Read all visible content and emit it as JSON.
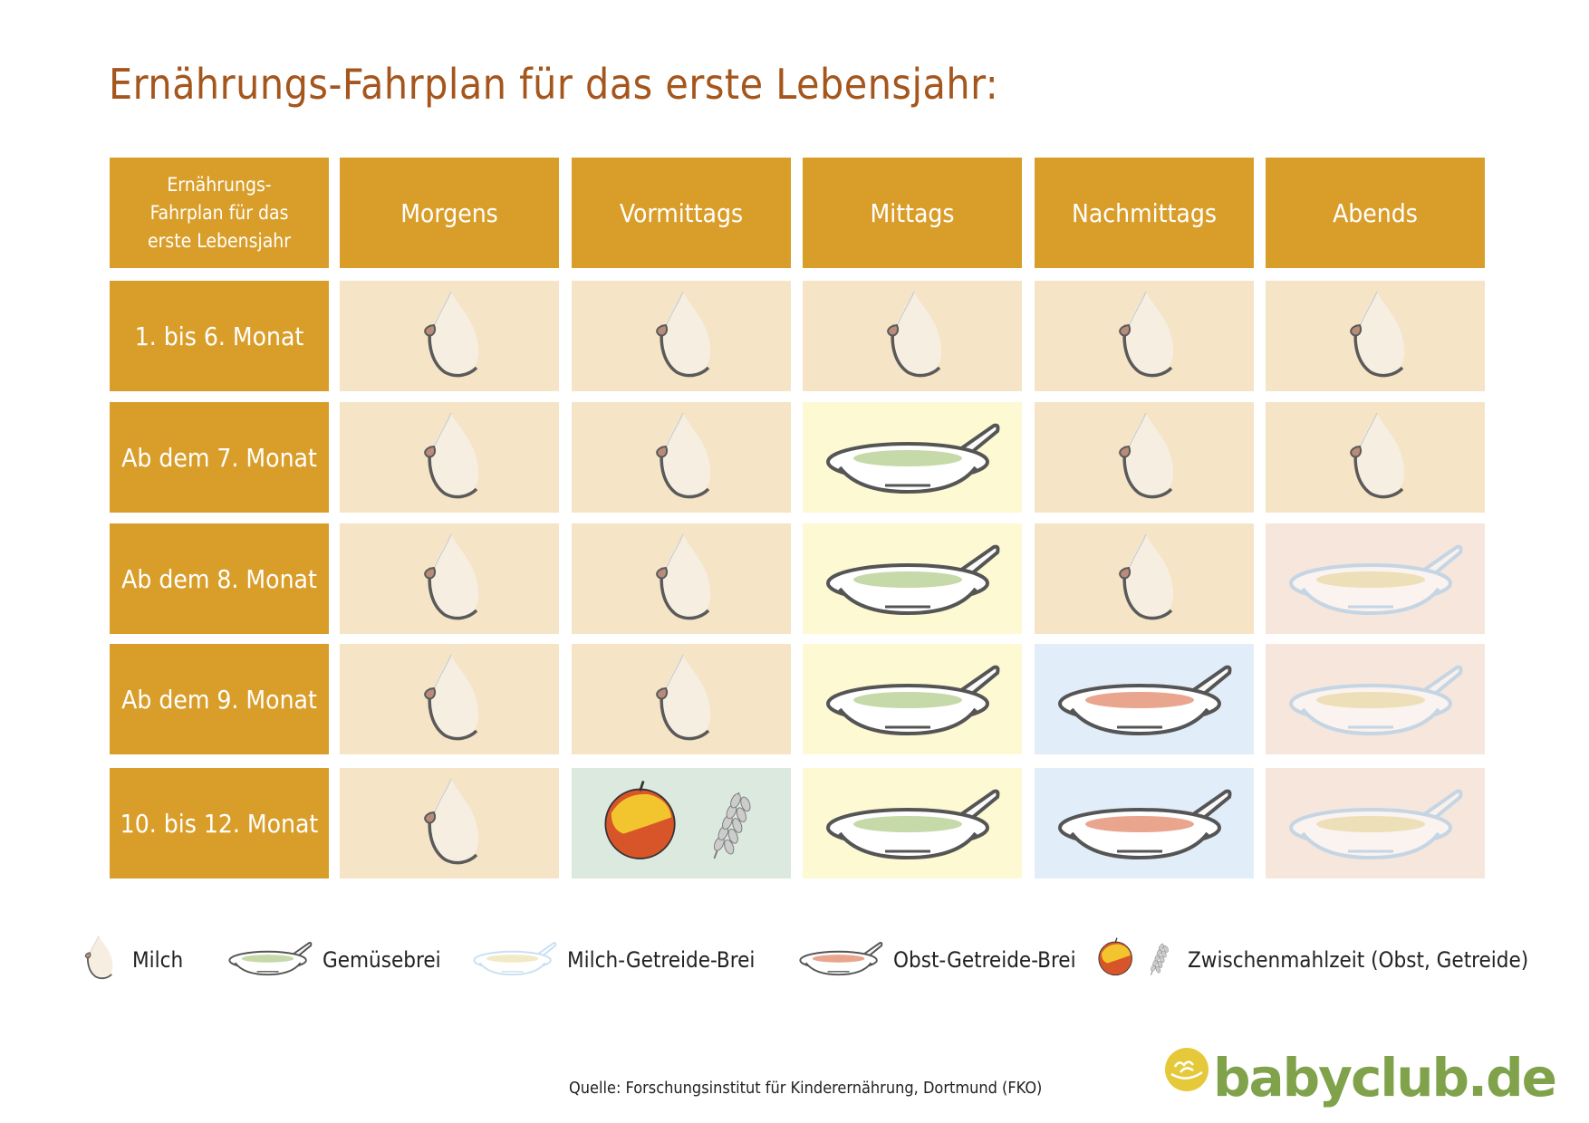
{
  "title": "Ernährungs-Fahrplan für das erste Lebensjahr:",
  "table": {
    "corner": [
      "Ernährungs-",
      "Fahrplan für das",
      "erste Lebensjahr"
    ],
    "columns": [
      "Morgens",
      "Vormittags",
      "Mittags",
      "Nachmittags",
      "Abends"
    ],
    "rows": [
      {
        "label": "1. bis 6. Monat",
        "cells": [
          "milk",
          "milk",
          "milk",
          "milk",
          "milk"
        ]
      },
      {
        "label": "Ab dem 7. Monat",
        "cells": [
          "milk",
          "milk",
          "vegetable",
          "milk",
          "milk"
        ]
      },
      {
        "label": "Ab dem 8. Monat",
        "cells": [
          "milk",
          "milk",
          "vegetable",
          "milk",
          "milkcereal"
        ]
      },
      {
        "label": "Ab dem 9. Monat",
        "cells": [
          "milk",
          "milk",
          "vegetable",
          "fruitcereal",
          "milkcereal"
        ]
      },
      {
        "label": "10. bis 12. Monat",
        "cells": [
          "milk",
          "snack",
          "vegetable",
          "fruitcereal",
          "milkcereal"
        ]
      }
    ]
  },
  "legend": [
    {
      "type": "milk",
      "label": "Milch"
    },
    {
      "type": "vegetable",
      "label": "Gemüsebrei"
    },
    {
      "type": "milkcereal",
      "label": "Milch-Getreide-Brei"
    },
    {
      "type": "fruitcereal",
      "label": "Obst-Getreide-Brei"
    },
    {
      "type": "snack",
      "label": "Zwischenmahlzeit (Obst, Getreide)"
    }
  ],
  "colors": {
    "header": "#D99E2A",
    "title": "#A5561C",
    "milk": "#F5E4C6",
    "vegetable": "#FDF9D3",
    "milkcereal": "#F6E6DC",
    "fruitcereal": "#E1EEF9",
    "snack": "#DCE9DF"
  },
  "icons": {
    "milk": "breast-icon",
    "vegetable": "vegetable-puree-bowl-icon",
    "milkcereal": "milk-cereal-bowl-icon",
    "fruitcereal": "fruit-cereal-bowl-icon",
    "snack": "apple-and-wheat-icon"
  },
  "source": "Quelle: Forschungsinstitut für Kinderernährung, Dortmund (FKO)",
  "logo": "babyclub.de"
}
